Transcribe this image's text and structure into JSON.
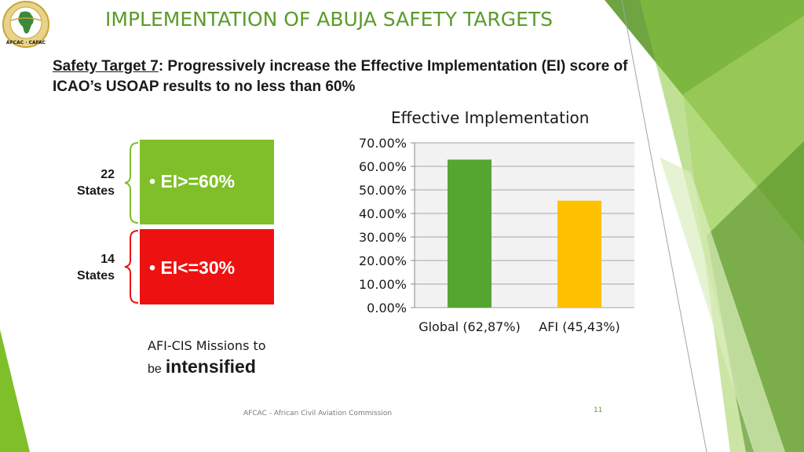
{
  "logo": {
    "lettering": "AFCAC · CAFAC",
    "colors": {
      "ring": "#d7b84a",
      "map": "#3a8a3a"
    }
  },
  "title": "IMPLEMENTATION OF ABUJA SAFETY TARGETS",
  "safety_target": {
    "label": "Safety Target 7",
    "text": ": Progressively increase the Effective Implementation (EI) score of ICAO’s USOAP results to no less than 60%"
  },
  "groups": [
    {
      "count": "22",
      "unit": "States",
      "bullet": "•",
      "criterion": "EI>=60%",
      "color": "#7fbf2a"
    },
    {
      "count": "14",
      "unit": "States",
      "bullet": "•",
      "criterion": "EI<=30%",
      "color": "#ee1111"
    }
  ],
  "mission": {
    "line1": "AFI-CIS Missions to",
    "be": "be",
    "emph": "intensified"
  },
  "footer": "AFCAC - African Civil Aviation Commission",
  "page_number": "11",
  "colors": {
    "accent_green": "#5b9b2a",
    "bar_global": "#55a630",
    "bar_afi": "#ffc000",
    "plot_bg": "#f2f2f2",
    "grid": "#bfbfbf"
  },
  "chart_data": {
    "type": "bar",
    "title": "Effective Implementation",
    "categories": [
      "Global (62,87%)",
      "AFI (45,43%)"
    ],
    "values": [
      62.87,
      45.43
    ],
    "bar_colors": [
      "#55a630",
      "#ffc000"
    ],
    "ylim": [
      0,
      70
    ],
    "yticks": [
      0,
      10,
      20,
      30,
      40,
      50,
      60,
      70
    ],
    "ytick_labels": [
      "0.00%",
      "10.00%",
      "20.00%",
      "30.00%",
      "40.00%",
      "50.00%",
      "60.00%",
      "70.00%"
    ],
    "xlabel": "",
    "ylabel": "",
    "grid": true,
    "legend": "none"
  }
}
